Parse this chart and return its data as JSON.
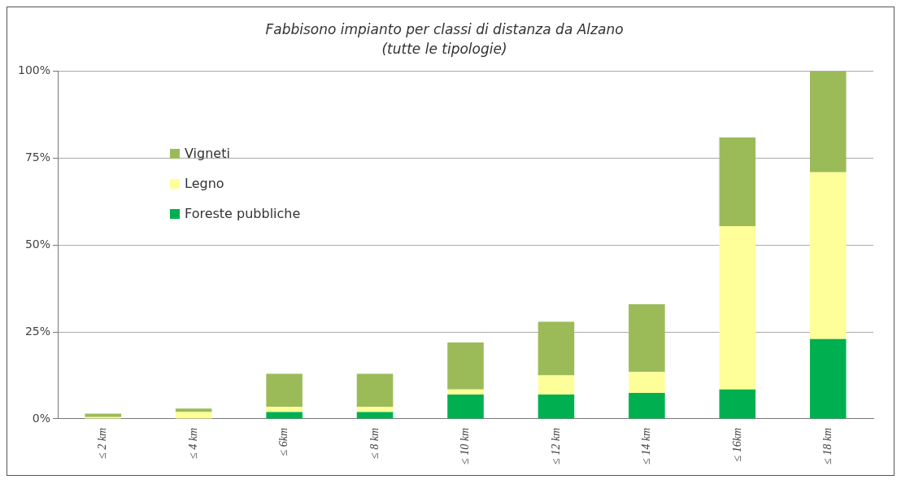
{
  "chart_data": {
    "type": "bar",
    "title": "Fabbisono impianto per classi di distanza da Alzano",
    "subtitle": "(tutte le tipologie)",
    "categories": [
      "≤ 2 km",
      "≤ 4 km",
      "≤ 6km",
      "≤ 8 km",
      "≤ 10 km",
      "≤ 12 km",
      "≤ 14 km",
      "≤ 16km",
      "≤ 18 km"
    ],
    "stacked": true,
    "series": [
      {
        "name": "Foreste pubbliche",
        "color": "#00b050",
        "values": [
          0,
          0,
          2,
          2,
          7,
          7,
          7.5,
          8.5,
          23
        ]
      },
      {
        "name": "Legno",
        "color": "#ffff99",
        "values": [
          0.5,
          2,
          1.5,
          1.5,
          1.5,
          5.5,
          6,
          47,
          48
        ]
      },
      {
        "name": "Vigneti",
        "color": "#9bbb59",
        "values": [
          1,
          1,
          9.5,
          9.5,
          13.5,
          15.5,
          19.5,
          25.5,
          29
        ]
      }
    ],
    "ylim": [
      0,
      100
    ],
    "yticks": [
      {
        "value": 0,
        "label": "0%"
      },
      {
        "value": 25,
        "label": "25%"
      },
      {
        "value": 50,
        "label": "50%"
      },
      {
        "value": 75,
        "label": "75%"
      },
      {
        "value": 100,
        "label": "100%"
      }
    ],
    "grid": "y",
    "legend": "top left"
  }
}
